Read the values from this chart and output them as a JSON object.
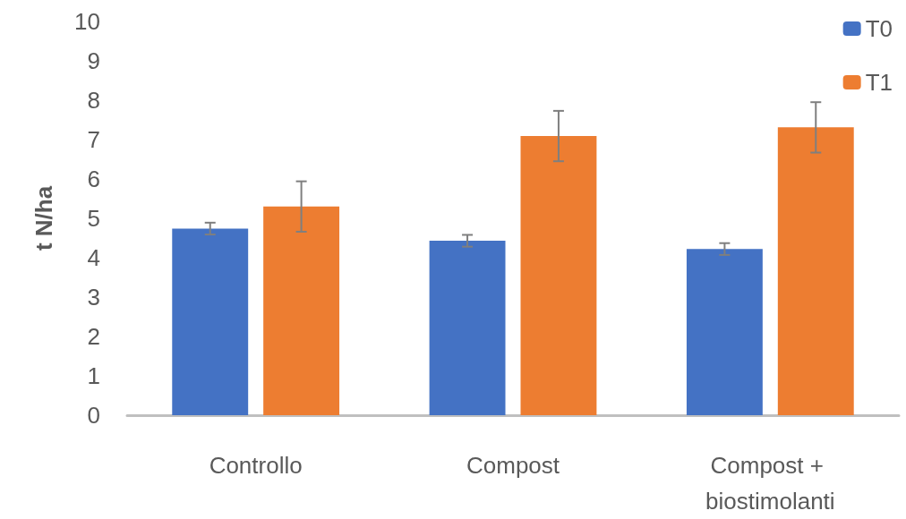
{
  "chart_data": {
    "type": "bar",
    "ylabel": "t N/ha",
    "categories": [
      "Controllo",
      "Compost",
      "Compost + biostimolanti"
    ],
    "series": [
      {
        "name": "T0",
        "color": "#4472c4",
        "values": [
          4.74,
          4.43,
          4.22
        ],
        "errors": [
          0.15,
          0.15,
          0.15
        ]
      },
      {
        "name": "T1",
        "color": "#ed7d31",
        "values": [
          5.3,
          7.09,
          7.31
        ],
        "errors": [
          0.64,
          0.64,
          0.64
        ]
      }
    ],
    "ylim": [
      0,
      10
    ],
    "yticks": [
      0,
      1,
      2,
      3,
      4,
      5,
      6,
      7,
      8,
      9,
      10
    ],
    "grid": false,
    "legend": "top right"
  }
}
